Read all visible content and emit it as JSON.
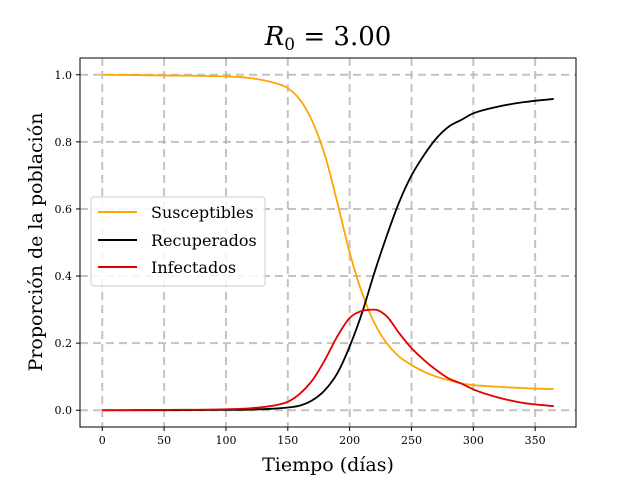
{
  "chart_data": {
    "type": "line",
    "title": "R0 = 3.00",
    "title_parts": {
      "base": "R",
      "sub": "0",
      "rest": " = 3.00"
    },
    "xlabel": "Tiempo (días)",
    "ylabel": "Proporción de la población",
    "xlim": [
      -18,
      383
    ],
    "ylim": [
      -0.05,
      1.05
    ],
    "xticks": [
      0,
      50,
      100,
      150,
      200,
      250,
      300,
      350
    ],
    "xtick_labels": [
      "0",
      "50",
      "100",
      "150",
      "200",
      "250",
      "300",
      "350"
    ],
    "yticks": [
      0.0,
      0.2,
      0.4,
      0.6,
      0.8,
      1.0
    ],
    "ytick_labels": [
      "0.0",
      "0.2",
      "0.4",
      "0.6",
      "0.8",
      "1.0"
    ],
    "grid": true,
    "legend_position": "center-left",
    "x": [
      0,
      50,
      100,
      120,
      140,
      150,
      160,
      170,
      180,
      190,
      200,
      210,
      220,
      230,
      240,
      250,
      260,
      270,
      280,
      290,
      300,
      320,
      340,
      365
    ],
    "series": [
      {
        "name": "Susceptibles",
        "color": "#ffa500",
        "values": [
          1.0,
          0.998,
          0.995,
          0.99,
          0.975,
          0.96,
          0.925,
          0.86,
          0.76,
          0.62,
          0.47,
          0.35,
          0.26,
          0.2,
          0.16,
          0.135,
          0.115,
          0.1,
          0.09,
          0.08,
          0.075,
          0.07,
          0.066,
          0.063
        ]
      },
      {
        "name": "Recuperados",
        "color": "#000000",
        "values": [
          0.0,
          0.0,
          0.001,
          0.002,
          0.005,
          0.008,
          0.014,
          0.03,
          0.06,
          0.11,
          0.19,
          0.29,
          0.41,
          0.52,
          0.62,
          0.7,
          0.76,
          0.81,
          0.845,
          0.865,
          0.885,
          0.905,
          0.918,
          0.928
        ]
      },
      {
        "name": "Infectados",
        "color": "#e00000",
        "values": [
          0.0,
          0.001,
          0.003,
          0.006,
          0.015,
          0.025,
          0.05,
          0.09,
          0.15,
          0.22,
          0.275,
          0.296,
          0.3,
          0.28,
          0.23,
          0.185,
          0.15,
          0.12,
          0.095,
          0.08,
          0.062,
          0.038,
          0.022,
          0.012
        ]
      }
    ]
  }
}
